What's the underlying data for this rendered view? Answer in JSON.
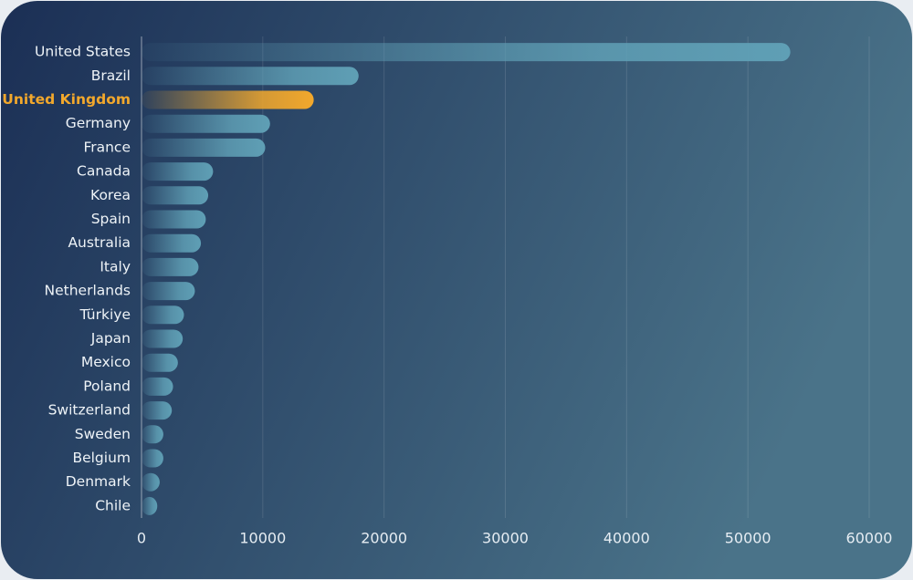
{
  "chart_data": {
    "type": "hbar",
    "categories": [
      "United States",
      "Brazil",
      "United Kingdom",
      "Germany",
      "France",
      "Canada",
      "Korea",
      "Spain",
      "Australia",
      "Italy",
      "Netherlands",
      "Türkiye",
      "Japan",
      "Mexico",
      "Poland",
      "Switzerland",
      "Sweden",
      "Belgium",
      "Denmark",
      "Chile"
    ],
    "values": [
      53500,
      17900,
      14200,
      10600,
      10200,
      5900,
      5500,
      5300,
      4900,
      4700,
      4400,
      3500,
      3400,
      3000,
      2600,
      2500,
      1800,
      1800,
      1500,
      1300
    ],
    "color": "#5f9fb5",
    "colors": [
      "#5f9fb5",
      "#5f9fb5",
      "#f2a82c",
      "#5f9fb5",
      "#5f9fb5",
      "#5f9fb5",
      "#5f9fb5",
      "#5f9fb5",
      "#5f9fb5",
      "#5f9fb5",
      "#5f9fb5",
      "#5f9fb5",
      "#5f9fb5",
      "#5f9fb5",
      "#5f9fb5",
      "#5f9fb5",
      "#5f9fb5",
      "#5f9fb5",
      "#5f9fb5",
      "#5f9fb5"
    ],
    "xlim": [
      0,
      60000
    ],
    "xticks": [
      0,
      10000,
      20000,
      30000,
      40000,
      50000,
      60000
    ],
    "grid": true
  }
}
